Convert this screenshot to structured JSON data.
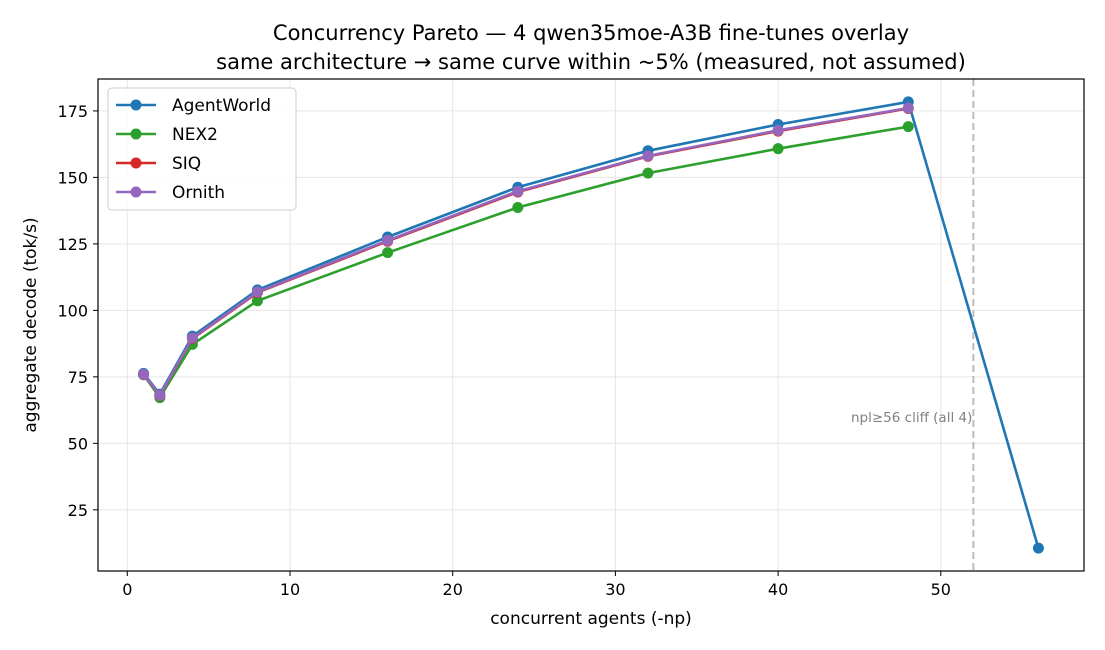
{
  "chart_data": {
    "type": "line",
    "title": "Concurrency Pareto — 4 qwen35moe-A3B fine-tunes overlay",
    "subtitle": "same architecture → same curve within ~5% (measured, not assumed)",
    "xlabel": "concurrent agents (-np)",
    "ylabel": "aggregate decode (tok/s)",
    "xlim": [
      -1.8,
      58.8
    ],
    "ylim": [
      2,
      187
    ],
    "xticks": [
      0,
      10,
      20,
      30,
      40,
      50
    ],
    "yticks": [
      25,
      50,
      75,
      100,
      125,
      150,
      175
    ],
    "grid": true,
    "legend_position": "top-left",
    "series": [
      {
        "name": "AgentWorld",
        "color": "#1f77b4",
        "x": [
          1,
          2,
          4,
          8,
          16,
          24,
          32,
          40,
          48,
          56
        ],
        "y": [
          76.3,
          68.5,
          90.3,
          107.7,
          127.6,
          146.3,
          160.0,
          169.9,
          178.4,
          10.6
        ]
      },
      {
        "name": "NEX2",
        "color": "#2ca02c",
        "x": [
          1,
          2,
          4,
          8,
          16,
          24,
          32,
          40,
          48
        ],
        "y": [
          75.8,
          67.2,
          87.2,
          103.6,
          121.7,
          138.7,
          151.6,
          160.8,
          169.1
        ]
      },
      {
        "name": "SIQ",
        "color": "#d62728",
        "x": [
          1,
          2,
          4,
          8,
          16,
          24,
          32,
          40,
          48
        ],
        "y": [
          75.9,
          68.0,
          89.4,
          106.7,
          126.0,
          144.5,
          157.9,
          167.4,
          175.9
        ]
      },
      {
        "name": "Ornith",
        "color": "#9467bd",
        "x": [
          1,
          2,
          4,
          8,
          16,
          24,
          32,
          40,
          48
        ],
        "y": [
          76.0,
          68.1,
          89.6,
          106.9,
          126.3,
          144.8,
          158.1,
          167.7,
          176.1
        ]
      }
    ],
    "annotations": [
      {
        "type": "vline",
        "x": 52,
        "color": "#bbbbbb",
        "style": "dashed"
      },
      {
        "type": "text",
        "x": 52,
        "y": 60,
        "text": "npl≥56 cliff (all 4)",
        "color": "#808080"
      }
    ]
  }
}
